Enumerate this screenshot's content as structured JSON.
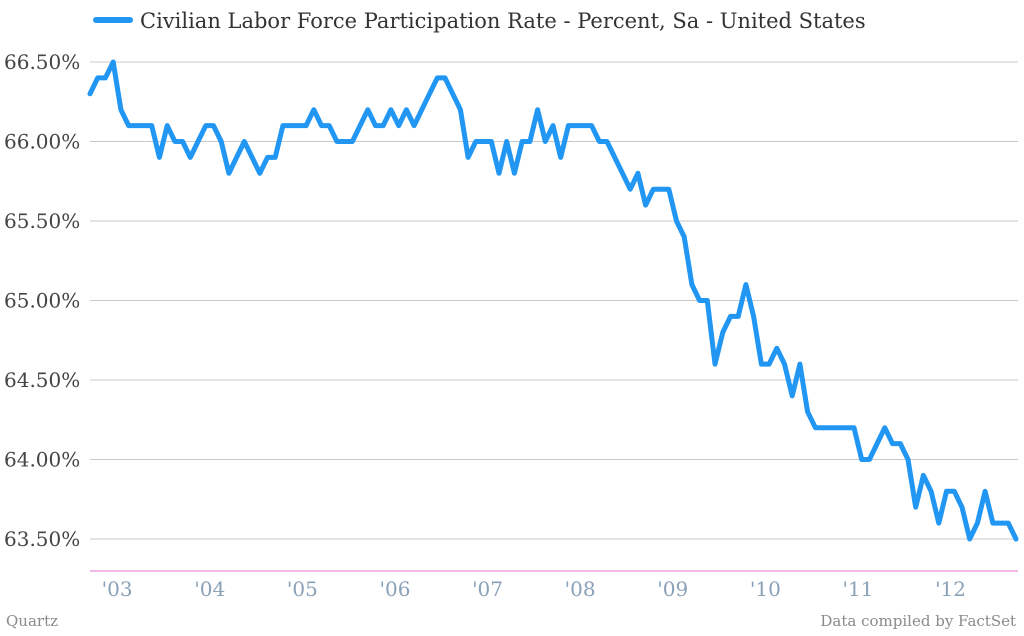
{
  "chart_data": {
    "type": "line",
    "series": [
      {
        "name": "Civilian Labor Force Participation Rate - Percent, Sa - United States",
        "color": "#2196f3",
        "values": [
          66.3,
          66.4,
          66.4,
          66.5,
          66.2,
          66.1,
          66.1,
          66.1,
          66.1,
          65.9,
          66.1,
          66.0,
          66.0,
          65.9,
          66.0,
          66.1,
          66.1,
          66.0,
          65.8,
          65.9,
          66.0,
          65.9,
          65.8,
          65.9,
          65.9,
          66.1,
          66.1,
          66.1,
          66.1,
          66.2,
          66.1,
          66.1,
          66.0,
          66.0,
          66.0,
          66.1,
          66.2,
          66.1,
          66.1,
          66.2,
          66.1,
          66.2,
          66.1,
          66.2,
          66.3,
          66.4,
          66.4,
          66.3,
          66.2,
          65.9,
          66.0,
          66.0,
          66.0,
          65.8,
          66.0,
          65.8,
          66.0,
          66.0,
          66.2,
          66.0,
          66.1,
          65.9,
          66.1,
          66.1,
          66.1,
          66.1,
          66.0,
          66.0,
          65.9,
          65.8,
          65.7,
          65.8,
          65.6,
          65.7,
          65.7,
          65.7,
          65.5,
          65.4,
          65.1,
          65.0,
          65.0,
          64.6,
          64.8,
          64.9,
          64.9,
          65.1,
          64.9,
          64.6,
          64.6,
          64.7,
          64.6,
          64.4,
          64.6,
          64.3,
          64.2,
          64.2,
          64.2,
          64.2,
          64.2,
          64.2,
          64.0,
          64.0,
          64.1,
          64.2,
          64.1,
          64.1,
          64.0,
          63.7,
          63.9,
          63.8,
          63.6,
          63.8,
          63.8,
          63.7,
          63.5,
          63.6,
          63.8,
          63.6,
          63.6,
          63.6,
          63.5
        ]
      }
    ],
    "y_ticks": [
      "66.50%",
      "66.00%",
      "65.50%",
      "65.00%",
      "64.50%",
      "64.00%",
      "63.50%"
    ],
    "y_tick_values": [
      66.5,
      66.0,
      65.5,
      65.0,
      64.5,
      64.0,
      63.5
    ],
    "x_ticks": [
      "'03",
      "'04",
      "'05",
      "'06",
      "'07",
      "'08",
      "'09",
      "'10",
      "'11",
      "'12"
    ],
    "ylim": [
      63.5,
      66.5
    ],
    "grid": true,
    "legend_position": "top-left"
  },
  "footer": {
    "source_left": "Quartz",
    "source_right": "Data compiled by FactSet"
  }
}
